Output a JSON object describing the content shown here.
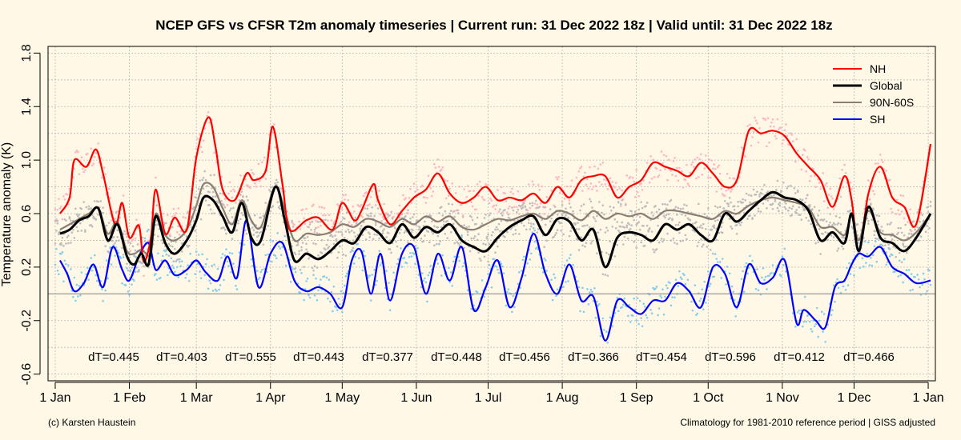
{
  "chart_data": {
    "type": "line",
    "title": "NCEP GFS vs CFSR T2m anomaly timeseries | Current run: 31 Dec 2022 18z | Valid until: 31 Dec 2022 18z",
    "ylabel": "Temperature anomaly (K)",
    "xlabel": "",
    "ylim": [
      -0.65,
      1.85
    ],
    "xlim": [
      -3,
      368
    ],
    "grid": true,
    "legend_position": "top-right",
    "y_ticks": [
      -0.6,
      -0.2,
      0.2,
      0.6,
      1.0,
      1.4,
      1.8
    ],
    "y_tick_labels": [
      "-0.6",
      "-0.2",
      "0.2",
      "0.6",
      "1.0",
      "1.4",
      "1.8"
    ],
    "x_ticks": [
      0,
      31,
      59,
      90,
      120,
      151,
      181,
      212,
      243,
      273,
      304,
      334,
      365
    ],
    "x_tick_labels": [
      "1 Jan",
      "1 Feb",
      "1 Mar",
      "1 Apr",
      "1 May",
      "1 Jun",
      "1 Jul",
      "1 Aug",
      "1 Sep",
      "1 Oct",
      "1 Nov",
      "1 Dec",
      "1 Jan"
    ],
    "reference_line": 0,
    "series": [
      {
        "name": "NH",
        "color": "#ff0000",
        "x": [
          2,
          6,
          8,
          13,
          17,
          20,
          25,
          28,
          31,
          35,
          37,
          40,
          42,
          46,
          50,
          55,
          59,
          64,
          67,
          70,
          75,
          80,
          83,
          88,
          91,
          95,
          98,
          105,
          110,
          116,
          120,
          125,
          128,
          133,
          135,
          140,
          145,
          150,
          155,
          160,
          165,
          170,
          175,
          180,
          185,
          190,
          195,
          200,
          205,
          210,
          215,
          220,
          225,
          230,
          235,
          240,
          245,
          250,
          255,
          260,
          265,
          270,
          275,
          280,
          285,
          290,
          295,
          300,
          305,
          310,
          315,
          320,
          325,
          330,
          333,
          336,
          340,
          345,
          350,
          355,
          360,
          366
        ],
        "values": [
          0.6,
          0.72,
          1.0,
          0.95,
          1.08,
          0.9,
          0.52,
          0.68,
          0.42,
          0.51,
          0.24,
          0.42,
          0.78,
          0.45,
          0.57,
          0.48,
          1.02,
          1.32,
          1.1,
          0.78,
          0.7,
          0.9,
          0.85,
          0.92,
          1.25,
          0.82,
          0.48,
          0.55,
          0.57,
          0.48,
          0.68,
          0.55,
          0.62,
          0.82,
          0.7,
          0.52,
          0.62,
          0.72,
          0.78,
          0.9,
          0.75,
          0.68,
          0.72,
          0.8,
          0.7,
          0.72,
          0.7,
          0.75,
          0.68,
          0.8,
          0.72,
          0.85,
          0.88,
          0.88,
          0.72,
          0.8,
          0.85,
          0.98,
          0.95,
          0.92,
          0.88,
          0.98,
          0.9,
          0.8,
          0.85,
          1.22,
          1.2,
          1.22,
          1.18,
          1.05,
          0.95,
          0.85,
          0.65,
          0.88,
          0.7,
          0.32,
          0.75,
          0.95,
          0.72,
          0.65,
          0.52,
          1.12
        ]
      },
      {
        "name": "Global",
        "color": "#000000",
        "x": [
          2,
          6,
          10,
          14,
          18,
          22,
          26,
          30,
          33,
          36,
          39,
          42,
          46,
          50,
          55,
          59,
          62,
          66,
          70,
          74,
          78,
          82,
          86,
          92,
          96,
          100,
          105,
          110,
          115,
          120,
          125,
          130,
          135,
          140,
          145,
          150,
          155,
          160,
          165,
          170,
          175,
          180,
          185,
          190,
          195,
          200,
          205,
          210,
          215,
          220,
          225,
          230,
          235,
          240,
          245,
          250,
          255,
          260,
          265,
          270,
          275,
          280,
          285,
          290,
          295,
          300,
          305,
          310,
          315,
          320,
          325,
          330,
          333,
          336,
          340,
          345,
          350,
          355,
          360,
          366
        ],
        "values": [
          0.45,
          0.48,
          0.55,
          0.58,
          0.64,
          0.4,
          0.52,
          0.28,
          0.22,
          0.3,
          0.22,
          0.58,
          0.38,
          0.3,
          0.4,
          0.55,
          0.72,
          0.7,
          0.58,
          0.46,
          0.68,
          0.42,
          0.4,
          0.8,
          0.55,
          0.25,
          0.3,
          0.26,
          0.32,
          0.4,
          0.38,
          0.5,
          0.46,
          0.38,
          0.52,
          0.42,
          0.5,
          0.46,
          0.52,
          0.4,
          0.35,
          0.32,
          0.42,
          0.5,
          0.55,
          0.58,
          0.44,
          0.56,
          0.54,
          0.4,
          0.48,
          0.2,
          0.42,
          0.46,
          0.44,
          0.4,
          0.52,
          0.48,
          0.52,
          0.44,
          0.4,
          0.6,
          0.54,
          0.62,
          0.7,
          0.76,
          0.72,
          0.7,
          0.62,
          0.4,
          0.46,
          0.38,
          0.6,
          0.32,
          0.65,
          0.42,
          0.38,
          0.32,
          0.42,
          0.6
        ]
      },
      {
        "name": "90N-60S",
        "color": "#8b7d72",
        "x": [
          2,
          6,
          10,
          14,
          18,
          22,
          26,
          30,
          33,
          36,
          40,
          42,
          46,
          50,
          55,
          59,
          62,
          66,
          70,
          74,
          78,
          82,
          86,
          92,
          96,
          100,
          105,
          110,
          115,
          120,
          125,
          130,
          135,
          140,
          145,
          150,
          155,
          160,
          165,
          170,
          175,
          180,
          185,
          190,
          195,
          200,
          205,
          210,
          215,
          220,
          225,
          230,
          235,
          240,
          245,
          250,
          255,
          260,
          265,
          270,
          275,
          280,
          285,
          290,
          295,
          300,
          305,
          310,
          315,
          320,
          325,
          330,
          333,
          336,
          340,
          345,
          350,
          355,
          360,
          366
        ],
        "values": [
          0.48,
          0.52,
          0.56,
          0.6,
          0.64,
          0.45,
          0.54,
          0.32,
          0.3,
          0.33,
          0.3,
          0.6,
          0.44,
          0.4,
          0.48,
          0.66,
          0.82,
          0.8,
          0.64,
          0.52,
          0.7,
          0.55,
          0.5,
          0.8,
          0.62,
          0.4,
          0.45,
          0.44,
          0.46,
          0.52,
          0.5,
          0.56,
          0.54,
          0.5,
          0.56,
          0.52,
          0.58,
          0.54,
          0.58,
          0.5,
          0.48,
          0.52,
          0.56,
          0.55,
          0.58,
          0.6,
          0.56,
          0.62,
          0.6,
          0.55,
          0.62,
          0.56,
          0.6,
          0.58,
          0.6,
          0.56,
          0.62,
          0.62,
          0.6,
          0.58,
          0.56,
          0.62,
          0.6,
          0.66,
          0.7,
          0.72,
          0.7,
          0.68,
          0.64,
          0.5,
          0.5,
          0.44,
          0.58,
          0.4,
          0.62,
          0.46,
          0.44,
          0.4,
          0.46,
          0.6
        ]
      },
      {
        "name": "SH",
        "color": "#0000ff",
        "x": [
          2,
          5,
          8,
          12,
          16,
          20,
          24,
          28,
          31,
          35,
          39,
          42,
          46,
          50,
          55,
          59,
          63,
          68,
          72,
          76,
          80,
          85,
          90,
          95,
          100,
          105,
          110,
          115,
          120,
          124,
          128,
          132,
          136,
          140,
          145,
          150,
          155,
          160,
          165,
          170,
          175,
          180,
          185,
          190,
          195,
          200,
          205,
          210,
          215,
          220,
          225,
          230,
          235,
          240,
          245,
          250,
          255,
          260,
          265,
          270,
          275,
          280,
          285,
          290,
          295,
          300,
          305,
          310,
          313,
          318,
          322,
          326,
          330,
          333,
          336,
          340,
          345,
          350,
          355,
          360,
          366
        ],
        "values": [
          0.25,
          0.15,
          0.02,
          0.08,
          0.22,
          0.05,
          0.35,
          0.18,
          0.1,
          0.28,
          0.38,
          0.18,
          0.25,
          0.14,
          0.18,
          0.25,
          0.16,
          0.1,
          0.28,
          0.12,
          0.55,
          0.05,
          0.3,
          0.38,
          0.1,
          0.02,
          0.05,
          0.0,
          -0.1,
          0.25,
          0.32,
          0.0,
          0.3,
          -0.05,
          0.3,
          0.35,
          0.0,
          0.3,
          0.1,
          0.35,
          -0.12,
          0.05,
          0.25,
          -0.1,
          0.12,
          0.45,
          0.15,
          0.0,
          0.22,
          -0.05,
          -0.02,
          -0.35,
          -0.05,
          -0.1,
          -0.15,
          -0.05,
          -0.05,
          0.08,
          0.02,
          -0.1,
          0.2,
          0.15,
          -0.1,
          0.22,
          0.08,
          0.12,
          0.25,
          -0.22,
          -0.12,
          -0.2,
          -0.25,
          0.05,
          0.1,
          0.22,
          0.3,
          0.28,
          0.35,
          0.2,
          0.15,
          0.08,
          0.1
        ]
      }
    ],
    "period_labels": [
      "dT=0.445",
      "dT=0.403",
      "dT=0.555",
      "dT=0.443",
      "dT=0.377",
      "dT=0.448",
      "dT=0.456",
      "dT=0.366",
      "dT=0.454",
      "dT=0.596",
      "dT=0.412",
      "dT=0.466"
    ],
    "period_label_y": -0.47,
    "scatter_colors": {
      "NH": "#ffb6c1",
      "Global": "#bdbdbd",
      "90N-60S": "#bdbdbd",
      "SH": "#87ceeb"
    }
  },
  "footer": {
    "left": "(c) Karsten Haustein",
    "right": "Climatology for 1981-2010 reference period | GISS adjusted"
  }
}
